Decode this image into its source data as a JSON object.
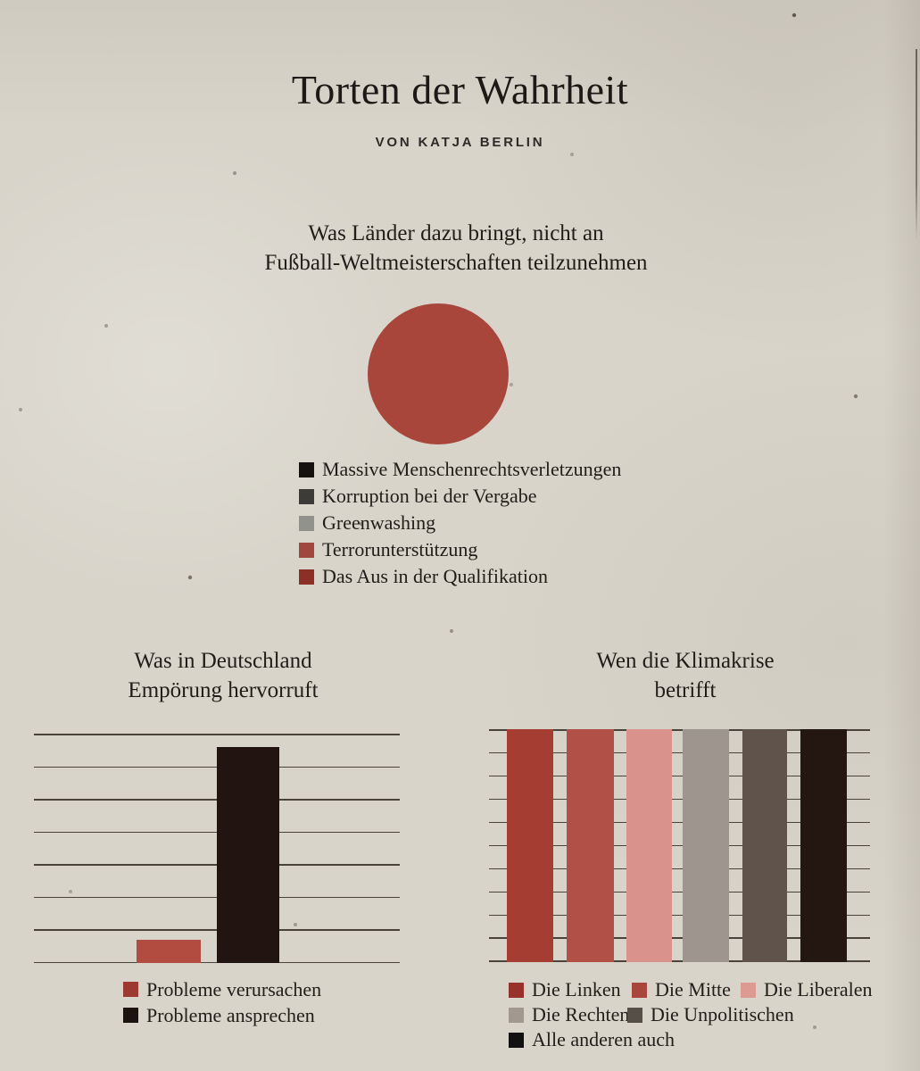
{
  "page": {
    "title": "Torten der Wahrheit",
    "byline": "VON KATJA BERLIN"
  },
  "pie_section": {
    "title_lines": [
      "Was Länder dazu bringt, nicht an",
      "Fußball-Weltmeisterschaften teilzunehmen"
    ],
    "legend": [
      {
        "label": "Massive Menschenrechtsverletzungen",
        "color": "#16120f"
      },
      {
        "label": "Korruption bei der Vergabe",
        "color": "#3d3b37"
      },
      {
        "label": "Greenwashing",
        "color": "#92928c"
      },
      {
        "label": "Terrorunterstützung",
        "color": "#a04740"
      },
      {
        "label": "Das Aus in der Qualifikation",
        "color": "#8c2f27"
      }
    ]
  },
  "left_chart": {
    "title_lines": [
      "Was in Deutschland",
      "Empörung hervorruft"
    ],
    "legend": [
      {
        "label": "Probleme verursachen",
        "color": "#9c3a32"
      },
      {
        "label": "Probleme ansprechen",
        "color": "#1c1311"
      }
    ]
  },
  "right_chart": {
    "title_lines": [
      "Wen die Klimakrise",
      "betrifft"
    ],
    "legend": [
      {
        "label": "Die Linken",
        "color": "#96322b"
      },
      {
        "label": "Die Mitte",
        "color": "#a8453c"
      },
      {
        "label": "Die Liberalen",
        "color": "#dd9a92"
      },
      {
        "label": "Die Rechten",
        "color": "#a19990"
      },
      {
        "label": "Die Unpolitischen",
        "color": "#564f48"
      },
      {
        "label": "Alle anderen auch",
        "color": "#111111"
      }
    ]
  },
  "chart_data": [
    {
      "type": "pie",
      "title": "Was Länder dazu bringt, nicht an Fußball-Weltmeisterschaften teilzunehmen",
      "slices": [
        {
          "label": "Massive Menschenrechtsverletzungen",
          "value": 0,
          "color": "#16120f"
        },
        {
          "label": "Korruption bei der Vergabe",
          "value": 0,
          "color": "#3d3b37"
        },
        {
          "label": "Greenwashing",
          "value": 0,
          "color": "#92928c"
        },
        {
          "label": "Terrorunterstützung",
          "value": 0,
          "color": "#a04740"
        },
        {
          "label": "Das Aus in der Qualifikation",
          "value": 100,
          "color": "#a8463c"
        }
      ],
      "legend_position": "below",
      "note": "single full-circle slice"
    },
    {
      "type": "bar",
      "title": "Was in Deutschland Empörung hervorruft",
      "categories": [
        "Probleme verursachen",
        "Probleme ansprechen"
      ],
      "values_pct": [
        10,
        94
      ],
      "colors": [
        "#b24b40",
        "#221410"
      ],
      "ylim": [
        0,
        100
      ],
      "gridline_count": 8,
      "axis_tick_labels": false,
      "legend_position": "below"
    },
    {
      "type": "bar",
      "title": "Wen die Klimakrise betrifft",
      "categories": [
        "Die Linken",
        "Die Mitte",
        "Die Liberalen",
        "Die Rechten",
        "Die Unpolitischen",
        "Alle anderen auch"
      ],
      "values_pct": [
        100,
        100,
        100,
        100,
        100,
        100
      ],
      "colors": [
        "#a63d33",
        "#b05047",
        "#d9938c",
        "#9d958e",
        "#5f534c",
        "#241712"
      ],
      "ylim": [
        0,
        100
      ],
      "gridline_count": 11,
      "axis_tick_labels": false,
      "legend_position": "below"
    }
  ]
}
